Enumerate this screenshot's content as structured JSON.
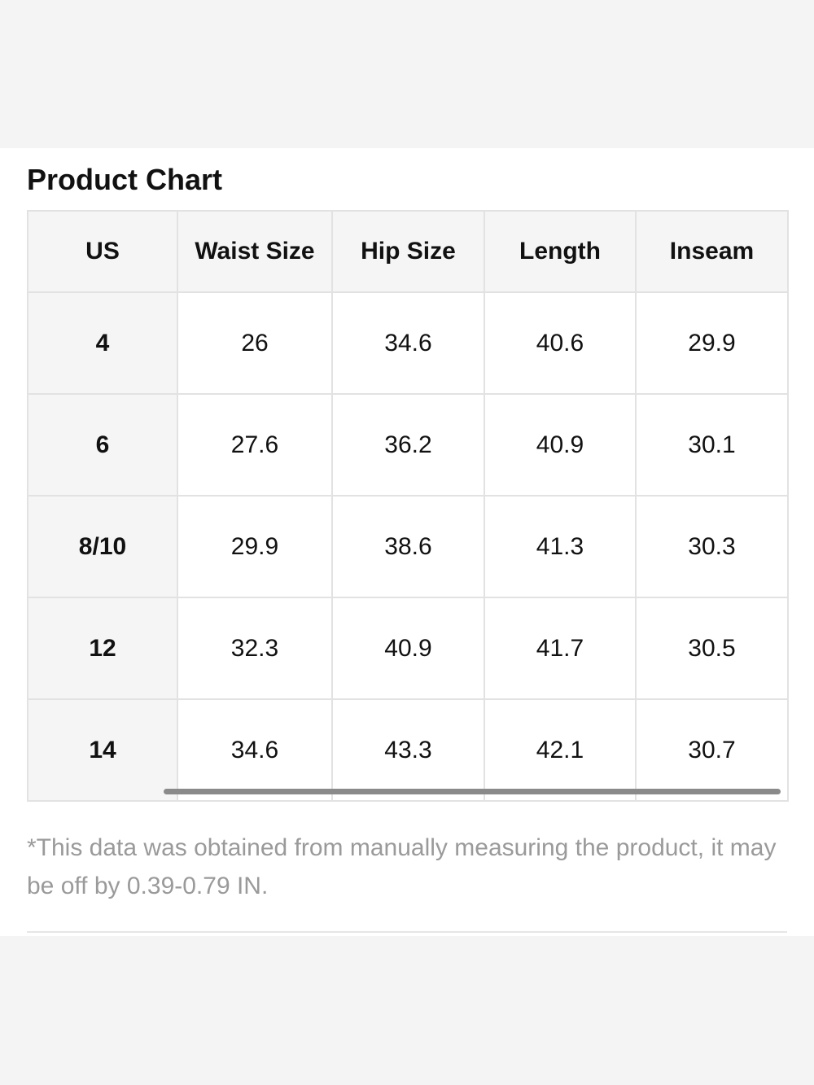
{
  "header": {
    "title": "Product Chart"
  },
  "table": {
    "columns": [
      "US",
      "Waist Size",
      "Hip Size",
      "Length",
      "Inseam"
    ],
    "rows": [
      [
        "4",
        "26",
        "34.6",
        "40.6",
        "29.9"
      ],
      [
        "6",
        "27.6",
        "36.2",
        "40.9",
        "30.1"
      ],
      [
        "8/10",
        "29.9",
        "38.6",
        "41.3",
        "30.3"
      ],
      [
        "12",
        "32.3",
        "40.9",
        "41.7",
        "30.5"
      ],
      [
        "14",
        "34.6",
        "43.3",
        "42.1",
        "30.7"
      ]
    ]
  },
  "footnote": "*This data was obtained from manually measuring the product, it may be off by 0.39-0.79 IN."
}
